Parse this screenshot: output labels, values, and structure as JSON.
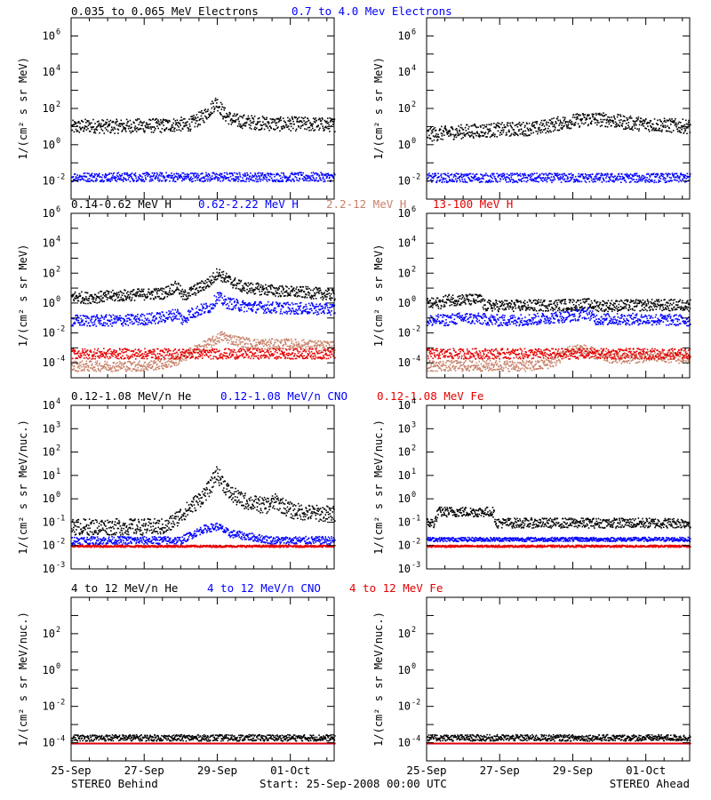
{
  "rows": [
    {
      "legend": [
        {
          "text": "0.035 to 0.065 MeV Electrons",
          "color": "#000000"
        },
        {
          "text": "0.7 to 4.0 Mev Electrons",
          "color": "#0000ff"
        }
      ],
      "ylabel": "1/(cm² s sr MeV)"
    },
    {
      "legend": [
        {
          "text": "0.14-0.62 MeV H",
          "color": "#000000"
        },
        {
          "text": "0.62-2.22 MeV H",
          "color": "#0000ff"
        },
        {
          "text": "2.2-12 MeV H",
          "color": "#c8826a"
        },
        {
          "text": "13-100 MeV H",
          "color": "#e60000"
        }
      ],
      "ylabel": "1/(cm² s sr MeV)"
    },
    {
      "legend": [
        {
          "text": "0.12-1.08 MeV/n He",
          "color": "#000000"
        },
        {
          "text": "0.12-1.08 MeV/n CNO",
          "color": "#0000ff"
        },
        {
          "text": "0.12-1.08 MeV Fe",
          "color": "#e60000"
        }
      ],
      "ylabel": "1/(cm² s sr MeV/nuc.)"
    },
    {
      "legend": [
        {
          "text": "4 to 12 MeV/n He",
          "color": "#000000"
        },
        {
          "text": "4 to 12 MeV/n CNO",
          "color": "#0000ff"
        },
        {
          "text": "4 to 12 MeV Fe",
          "color": "#e60000"
        }
      ],
      "ylabel": "1/(cm² s sr MeV/nuc.)"
    }
  ],
  "footer": {
    "left": "STEREO Behind",
    "center": "Start: 25-Sep-2008 00:00 UTC",
    "right": "STEREO Ahead"
  },
  "xtick_labels": [
    "25-Sep",
    "27-Sep",
    "29-Sep",
    "01-Oct"
  ],
  "chart_data": [
    {
      "type": "scatter",
      "panel": "electrons",
      "spacecraft": "STEREO Behind",
      "x_axis": "days since 25-Sep-2008 00:00 UTC",
      "xlim": [
        0,
        7.2
      ],
      "yscale": "log",
      "ylim": [
        0.001,
        10000000
      ],
      "ytick_exponents": [
        -2,
        0,
        2,
        4,
        6
      ],
      "series": [
        {
          "name": "0.035 to 0.065 MeV Electrons",
          "color": "#000000",
          "fill": [
            0.2,
            1.2
          ],
          "x": [
            0,
            0.5,
            1,
            1.5,
            2,
            2.5,
            3.0,
            3.1,
            3.3,
            3.6,
            3.8,
            3.95,
            4.05,
            4.15,
            4.4,
            4.8,
            5.2,
            5.6,
            6.0,
            6.5,
            7.2
          ],
          "y": [
            20,
            25,
            22,
            24,
            25,
            25,
            30,
            25,
            35,
            80,
            200,
            500,
            300,
            120,
            50,
            40,
            35,
            30,
            32,
            30,
            28
          ]
        },
        {
          "name": "0.7 to 4.0 Mev Electrons",
          "color": "#0000ff",
          "fill": [
            0.5,
            1.6
          ],
          "x": [
            0,
            7.2
          ],
          "y": [
            0.02,
            0.02
          ]
        }
      ]
    },
    {
      "type": "scatter",
      "panel": "electrons",
      "spacecraft": "STEREO Ahead",
      "x_axis": "days since 25-Sep-2008 00:00 UTC",
      "xlim": [
        0,
        7.2
      ],
      "yscale": "log",
      "ylim": [
        0.001,
        10000000
      ],
      "ytick_exponents": [
        -2,
        0,
        2,
        4,
        6
      ],
      "series": [
        {
          "name": "0.035 to 0.065 MeV Electrons",
          "color": "#000000",
          "fill": [
            0.2,
            1.2
          ],
          "x": [
            0,
            1,
            2,
            3,
            3.5,
            4,
            4.5,
            5.0,
            5.5,
            6,
            7.2
          ],
          "y": [
            8,
            12,
            15,
            18,
            30,
            45,
            60,
            50,
            35,
            30,
            22
          ]
        },
        {
          "name": "0.7 to 4.0 Mev Electrons",
          "color": "#0000ff",
          "fill": [
            0.5,
            1.6
          ],
          "x": [
            0,
            7.2
          ],
          "y": [
            0.018,
            0.018
          ]
        }
      ]
    },
    {
      "type": "scatter",
      "panel": "protons",
      "spacecraft": "STEREO Behind",
      "x_axis": "days since 25-Sep-2008 00:00 UTC",
      "xlim": [
        0,
        7.2
      ],
      "yscale": "log",
      "ylim": [
        1e-05,
        1000000
      ],
      "ytick_exponents": [
        -4,
        -2,
        0,
        2,
        4,
        6
      ],
      "series": [
        {
          "name": "0.14-0.62 MeV H",
          "color": "#000000",
          "fill": [
            0.25,
            1.5
          ],
          "x": [
            0,
            0.4,
            1.0,
            1.5,
            2.0,
            2.5,
            2.9,
            3.05,
            3.2,
            3.5,
            3.8,
            4.0,
            4.1,
            4.3,
            4.7,
            5.2,
            5.6,
            6.0,
            6.5,
            7.2
          ],
          "y": [
            5,
            4,
            5,
            6,
            7,
            8,
            25,
            5,
            8,
            20,
            50,
            200,
            120,
            60,
            20,
            15,
            12,
            10,
            9,
            6
          ]
        },
        {
          "name": "0.62-2.22 MeV H",
          "color": "#0000ff",
          "fill": [
            0.25,
            1.5
          ],
          "x": [
            0,
            1.0,
            1.5,
            2.0,
            2.5,
            2.9,
            3.05,
            3.2,
            3.5,
            3.8,
            4.0,
            4.2,
            4.6,
            5.0,
            5.5,
            6.0,
            7.2
          ],
          "y": [
            0.12,
            0.12,
            0.13,
            0.15,
            0.2,
            0.35,
            0.12,
            0.3,
            0.6,
            1.0,
            5,
            2,
            1.2,
            1.0,
            0.9,
            0.8,
            0.7
          ]
        },
        {
          "name": "2.2-12 MeV H",
          "color": "#c8826a",
          "fill": [
            0.3,
            1.5
          ],
          "x": [
            0,
            2.0,
            2.6,
            3.0,
            3.3,
            3.6,
            3.9,
            4.1,
            4.5,
            5.0,
            5.5,
            6.0,
            6.5,
            7.2
          ],
          "y": [
            0.0001,
            0.0001,
            0.00015,
            0.0003,
            0.001,
            0.002,
            0.005,
            0.01,
            0.005,
            0.003,
            0.003,
            0.003,
            0.0025,
            0.002
          ]
        },
        {
          "name": "13-100 MeV H",
          "color": "#e60000",
          "fill": [
            0.4,
            2.0
          ],
          "x": [
            0,
            7.2
          ],
          "y": [
            0.0005,
            0.0005
          ]
        }
      ]
    },
    {
      "type": "scatter",
      "panel": "protons",
      "spacecraft": "STEREO Ahead",
      "x_axis": "days since 25-Sep-2008 00:00 UTC",
      "xlim": [
        0,
        7.2
      ],
      "yscale": "log",
      "ylim": [
        1e-05,
        1000000
      ],
      "ytick_exponents": [
        -4,
        -2,
        0,
        2,
        4,
        6
      ],
      "series": [
        {
          "name": "0.14-0.62 MeV H",
          "color": "#000000",
          "fill": [
            0.25,
            1.5
          ],
          "x": [
            0,
            0.45,
            0.5,
            1.0,
            1.5,
            1.55,
            2.5,
            3.5,
            4.5,
            4.6,
            5.0,
            6.0,
            7.2
          ],
          "y": [
            1.5,
            2,
            3,
            3,
            3,
            1.2,
            1.2,
            1.3,
            1.5,
            1.2,
            1.2,
            1.3,
            1.3
          ]
        },
        {
          "name": "0.62-2.22 MeV H",
          "color": "#0000ff",
          "fill": [
            0.25,
            1.5
          ],
          "x": [
            0,
            0.5,
            1.0,
            1.55,
            2.0,
            3.0,
            3.5,
            4.0,
            4.4,
            4.6,
            5.0,
            6.0,
            7.2
          ],
          "y": [
            0.12,
            0.13,
            0.18,
            0.15,
            0.12,
            0.15,
            0.2,
            0.25,
            0.4,
            0.15,
            0.15,
            0.15,
            0.12
          ]
        },
        {
          "name": "2.2-12 MeV H",
          "color": "#c8826a",
          "fill": [
            0.3,
            1.6
          ],
          "x": [
            0,
            3.0,
            3.5,
            3.8,
            4.1,
            4.4,
            4.7,
            5.2,
            6.0,
            6.5,
            7.2
          ],
          "y": [
            0.0001,
            0.0001,
            0.0002,
            0.0008,
            0.0015,
            0.001,
            0.0005,
            0.0003,
            0.0004,
            0.0004,
            0.0003
          ]
        },
        {
          "name": "13-100 MeV H",
          "color": "#e60000",
          "fill": [
            0.4,
            2.0
          ],
          "x": [
            0,
            7.2
          ],
          "y": [
            0.0005,
            0.0005
          ]
        }
      ]
    },
    {
      "type": "scatter",
      "panel": "heavy ions 0.12-1.08",
      "spacecraft": "STEREO Behind",
      "x_axis": "days since 25-Sep-2008 00:00 UTC",
      "xlim": [
        0,
        7.2
      ],
      "yscale": "log",
      "ylim": [
        0.001,
        10000
      ],
      "ytick_exponents": [
        -3,
        -2,
        -1,
        0,
        1,
        2,
        3,
        4
      ],
      "series": [
        {
          "name": "0.12-1.08 MeV/n He",
          "color": "#000000",
          "fill": [
            0.3,
            1.5
          ],
          "x": [
            0,
            2.6,
            2.9,
            3.2,
            3.5,
            3.8,
            3.95,
            4.1,
            4.3,
            4.6,
            5.0,
            5.3,
            5.6,
            6.0,
            6.5,
            7.2
          ],
          "y": [
            0.1,
            0.1,
            0.25,
            0.6,
            1.5,
            5,
            20,
            10,
            3,
            1.5,
            1.0,
            0.8,
            1.2,
            0.5,
            0.4,
            0.35
          ]
        },
        {
          "name": "0.12-1.08 MeV/n CNO",
          "color": "#0000ff",
          "fill": [
            0.6,
            1.3
          ],
          "x": [
            0,
            3.0,
            3.2,
            3.6,
            4.0,
            4.3,
            4.8,
            5.5,
            7.2
          ],
          "y": [
            0.02,
            0.02,
            0.03,
            0.06,
            0.08,
            0.04,
            0.03,
            0.02,
            0.02
          ]
        },
        {
          "name": "0.12-1.08 MeV Fe",
          "color": "#e60000",
          "fill": [
            0.9,
            1.1
          ],
          "x": [
            0,
            7.2
          ],
          "y": [
            0.01,
            0.01
          ]
        }
      ]
    },
    {
      "type": "scatter",
      "panel": "heavy ions 0.12-1.08",
      "spacecraft": "STEREO Ahead",
      "x_axis": "days since 25-Sep-2008 00:00 UTC",
      "xlim": [
        0,
        7.2
      ],
      "yscale": "log",
      "ylim": [
        0.001,
        10000
      ],
      "ytick_exponents": [
        -3,
        -2,
        -1,
        0,
        1,
        2,
        3,
        4
      ],
      "series": [
        {
          "name": "0.12-1.08 MeV/n He",
          "color": "#000000",
          "fill": [
            0.6,
            1.6
          ],
          "x": [
            0,
            0.2,
            0.3,
            1.8,
            1.9,
            7.2
          ],
          "y": [
            0.1,
            0.1,
            0.3,
            0.3,
            0.1,
            0.1
          ]
        },
        {
          "name": "0.12-1.08 MeV/n CNO",
          "color": "#0000ff",
          "fill": [
            0.8,
            1.2
          ],
          "x": [
            0,
            7.2
          ],
          "y": [
            0.02,
            0.02
          ]
        },
        {
          "name": "0.12-1.08 MeV Fe",
          "color": "#e60000",
          "fill": [
            0.9,
            1.1
          ],
          "x": [
            0,
            7.2
          ],
          "y": [
            0.01,
            0.01
          ]
        }
      ]
    },
    {
      "type": "scatter",
      "panel": "heavy ions 4-12",
      "spacecraft": "STEREO Behind",
      "x_axis": "days since 25-Sep-2008 00:00 UTC",
      "xlim": [
        0,
        7.2
      ],
      "yscale": "log",
      "ylim": [
        1e-05,
        10000
      ],
      "ytick_exponents": [
        -4,
        -2,
        0,
        2
      ],
      "series": [
        {
          "name": "4 to 12 MeV/n He",
          "color": "#000000",
          "fill": [
            0.9,
            2.0
          ],
          "x": [
            0,
            7.2
          ],
          "y": [
            0.00015,
            0.00015
          ]
        },
        {
          "name": "4 to 12 MeV/n CNO",
          "color": "#0000ff",
          "fill": [
            1.0,
            1.0
          ],
          "x": [
            0,
            7.2
          ],
          "y": [
            0.0001,
            0.0001
          ]
        },
        {
          "name": "4 to 12 MeV Fe",
          "color": "#e60000",
          "fill": [
            1.0,
            1.0
          ],
          "x": [
            0,
            7.2
          ],
          "y": [
            0.0001,
            0.0001
          ]
        }
      ]
    },
    {
      "type": "scatter",
      "panel": "heavy ions 4-12",
      "spacecraft": "STEREO Ahead",
      "x_axis": "days since 25-Sep-2008 00:00 UTC",
      "xlim": [
        0,
        7.2
      ],
      "yscale": "log",
      "ylim": [
        1e-05,
        10000
      ],
      "ytick_exponents": [
        -4,
        -2,
        0,
        2
      ],
      "series": [
        {
          "name": "4 to 12 MeV/n He",
          "color": "#000000",
          "fill": [
            0.9,
            2.0
          ],
          "x": [
            0,
            7.2
          ],
          "y": [
            0.00015,
            0.00015
          ]
        },
        {
          "name": "4 to 12 MeV/n CNO",
          "color": "#0000ff",
          "fill": [
            1.0,
            1.0
          ],
          "x": [
            0,
            7.2
          ],
          "y": [
            0.0001,
            0.0001
          ]
        },
        {
          "name": "4 to 12 MeV Fe",
          "color": "#e60000",
          "fill": [
            1.0,
            1.0
          ],
          "x": [
            0,
            7.2
          ],
          "y": [
            0.0001,
            0.0001
          ]
        }
      ]
    }
  ]
}
